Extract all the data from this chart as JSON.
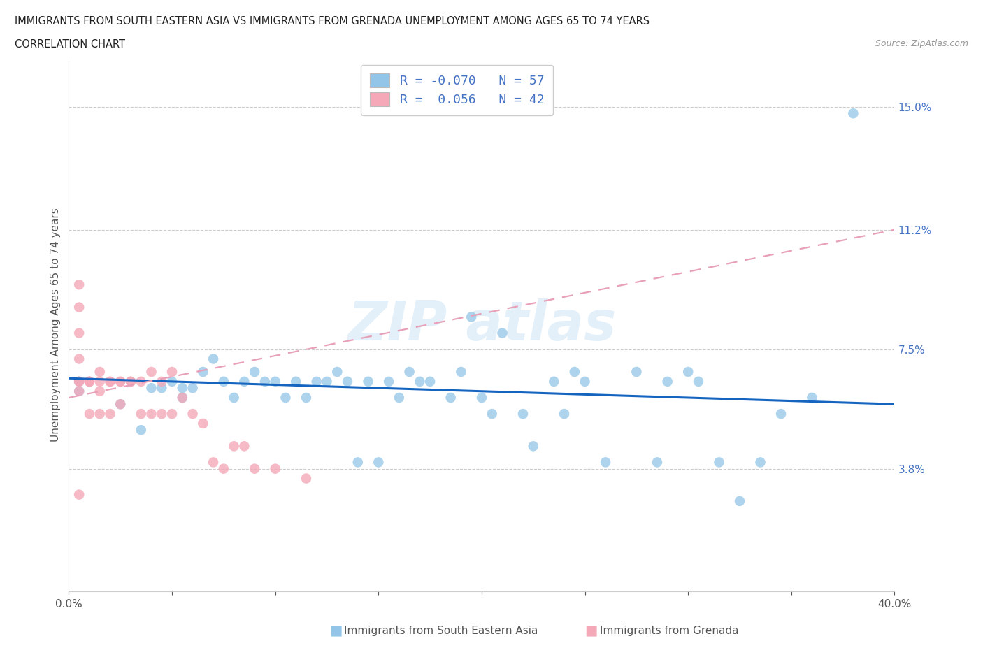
{
  "title_line1": "IMMIGRANTS FROM SOUTH EASTERN ASIA VS IMMIGRANTS FROM GRENADA UNEMPLOYMENT AMONG AGES 65 TO 74 YEARS",
  "title_line2": "CORRELATION CHART",
  "source_text": "Source: ZipAtlas.com",
  "ylabel": "Unemployment Among Ages 65 to 74 years",
  "xlim": [
    0.0,
    0.4
  ],
  "ylim": [
    0.0,
    0.165
  ],
  "ytick_labels_right": [
    "3.8%",
    "7.5%",
    "11.2%",
    "15.0%"
  ],
  "ytick_vals_right": [
    0.038,
    0.075,
    0.112,
    0.15
  ],
  "color_blue": "#92C5E8",
  "color_pink": "#F4A8B8",
  "color_blue_line": "#1565C0",
  "color_pink_line": "#E8A0B0",
  "color_legend_text": "#4472C4",
  "blue_scatter_x": [
    0.38,
    0.005,
    0.005,
    0.025,
    0.035,
    0.04,
    0.045,
    0.05,
    0.055,
    0.055,
    0.06,
    0.065,
    0.07,
    0.075,
    0.08,
    0.085,
    0.09,
    0.095,
    0.1,
    0.105,
    0.11,
    0.115,
    0.12,
    0.125,
    0.13,
    0.135,
    0.14,
    0.145,
    0.15,
    0.155,
    0.16,
    0.165,
    0.17,
    0.175,
    0.185,
    0.19,
    0.195,
    0.2,
    0.205,
    0.21,
    0.22,
    0.225,
    0.235,
    0.24,
    0.245,
    0.25,
    0.26,
    0.275,
    0.285,
    0.29,
    0.3,
    0.305,
    0.315,
    0.325,
    0.335,
    0.345,
    0.36
  ],
  "blue_scatter_y": [
    0.148,
    0.065,
    0.062,
    0.058,
    0.05,
    0.063,
    0.063,
    0.065,
    0.06,
    0.063,
    0.063,
    0.068,
    0.072,
    0.065,
    0.06,
    0.065,
    0.068,
    0.065,
    0.065,
    0.06,
    0.065,
    0.06,
    0.065,
    0.065,
    0.068,
    0.065,
    0.04,
    0.065,
    0.04,
    0.065,
    0.06,
    0.068,
    0.065,
    0.065,
    0.06,
    0.068,
    0.085,
    0.06,
    0.055,
    0.08,
    0.055,
    0.045,
    0.065,
    0.055,
    0.068,
    0.065,
    0.04,
    0.068,
    0.04,
    0.065,
    0.068,
    0.065,
    0.04,
    0.028,
    0.04,
    0.055,
    0.06
  ],
  "pink_scatter_x": [
    0.005,
    0.005,
    0.005,
    0.005,
    0.005,
    0.005,
    0.005,
    0.005,
    0.01,
    0.01,
    0.01,
    0.01,
    0.015,
    0.015,
    0.015,
    0.015,
    0.02,
    0.02,
    0.02,
    0.025,
    0.025,
    0.025,
    0.03,
    0.03,
    0.035,
    0.035,
    0.04,
    0.04,
    0.045,
    0.045,
    0.05,
    0.05,
    0.055,
    0.06,
    0.065,
    0.07,
    0.075,
    0.08,
    0.085,
    0.09,
    0.1,
    0.115
  ],
  "pink_scatter_y": [
    0.095,
    0.088,
    0.08,
    0.072,
    0.065,
    0.065,
    0.062,
    0.03,
    0.065,
    0.065,
    0.065,
    0.055,
    0.068,
    0.065,
    0.062,
    0.055,
    0.065,
    0.065,
    0.055,
    0.065,
    0.065,
    0.058,
    0.065,
    0.065,
    0.065,
    0.055,
    0.068,
    0.055,
    0.065,
    0.055,
    0.068,
    0.055,
    0.06,
    0.055,
    0.052,
    0.04,
    0.038,
    0.045,
    0.045,
    0.038,
    0.038,
    0.035
  ],
  "blue_trend_x0": 0.0,
  "blue_trend_x1": 0.4,
  "blue_trend_y0": 0.066,
  "blue_trend_y1": 0.058,
  "pink_trend_x0": 0.0,
  "pink_trend_x1": 0.4,
  "pink_trend_y0": 0.06,
  "pink_trend_y1": 0.112
}
